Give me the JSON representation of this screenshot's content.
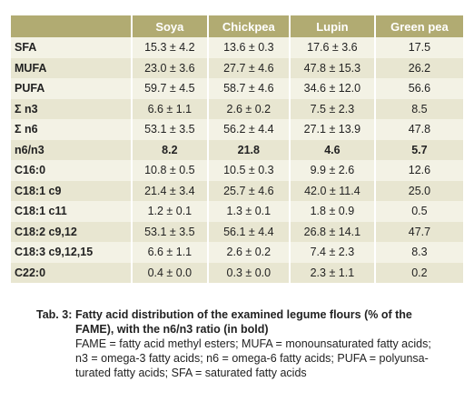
{
  "table": {
    "headers": [
      "Soya",
      "Chickpea",
      "Lupin",
      "Green pea"
    ],
    "rows": [
      [
        "SFA",
        "15.3 ± 4.2",
        "13.6 ± 0.3",
        "17.6 ± 3.6",
        "17.5"
      ],
      [
        "MUFA",
        "23.0 ± 3.6",
        "27.7 ± 4.6",
        "47.8 ± 15.3",
        "26.2"
      ],
      [
        "PUFA",
        "59.7 ± 4.5",
        "58.7 ± 4.6",
        "34.6 ± 12.0",
        "56.6"
      ],
      [
        "Σ n3",
        "6.6 ± 1.1",
        "2.6 ± 0.2",
        "7.5 ± 2.3",
        "8.5"
      ],
      [
        "Σ n6",
        "53.1 ± 3.5",
        "56.2 ± 4.4",
        "27.1 ± 13.9",
        "47.8"
      ],
      [
        "n6/n3",
        "8.2",
        "21.8",
        "4.6",
        "5.7"
      ],
      [
        "C16:0",
        "10.8 ± 0.5",
        "10.5 ± 0.3",
        "9.9 ± 2.6",
        "12.6"
      ],
      [
        "C18:1 c9",
        "21.4 ± 3.4",
        "25.7 ± 4.6",
        "42.0 ± 11.4",
        "25.0"
      ],
      [
        "C18:1 c11",
        "1.2 ± 0.1",
        "1.3 ± 0.1",
        "1.8 ± 0.9",
        "0.5"
      ],
      [
        "C18:2 c9,12",
        "53.1 ± 3.5",
        "56.1 ± 4.4",
        "26.8 ± 14.1",
        "47.7"
      ],
      [
        "C18:3 c9,12,15",
        "6.6 ± 1.1",
        "2.6 ± 0.2",
        "7.4 ± 2.3",
        "8.3"
      ],
      [
        "C22:0",
        "0.4 ± 0.0",
        "0.3 ± 0.0",
        "2.3 ± 1.1",
        "0.2"
      ]
    ],
    "bold_row": 5
  },
  "caption": {
    "label": "Tab. 3:",
    "title": [
      "Fatty acid distribution of the examined legume flours (% of the",
      "FAME), with the n6/n3 ratio (in bold)"
    ],
    "text": [
      "FAME = fatty acid methyl esters; MUFA = monounsaturated fatty acids;",
      "n3 = omega-3 fatty acids; n6 = omega-6 fatty acids; PUFA = polyunsa-",
      "turated fatty acids; SFA = saturated fatty acids"
    ]
  }
}
